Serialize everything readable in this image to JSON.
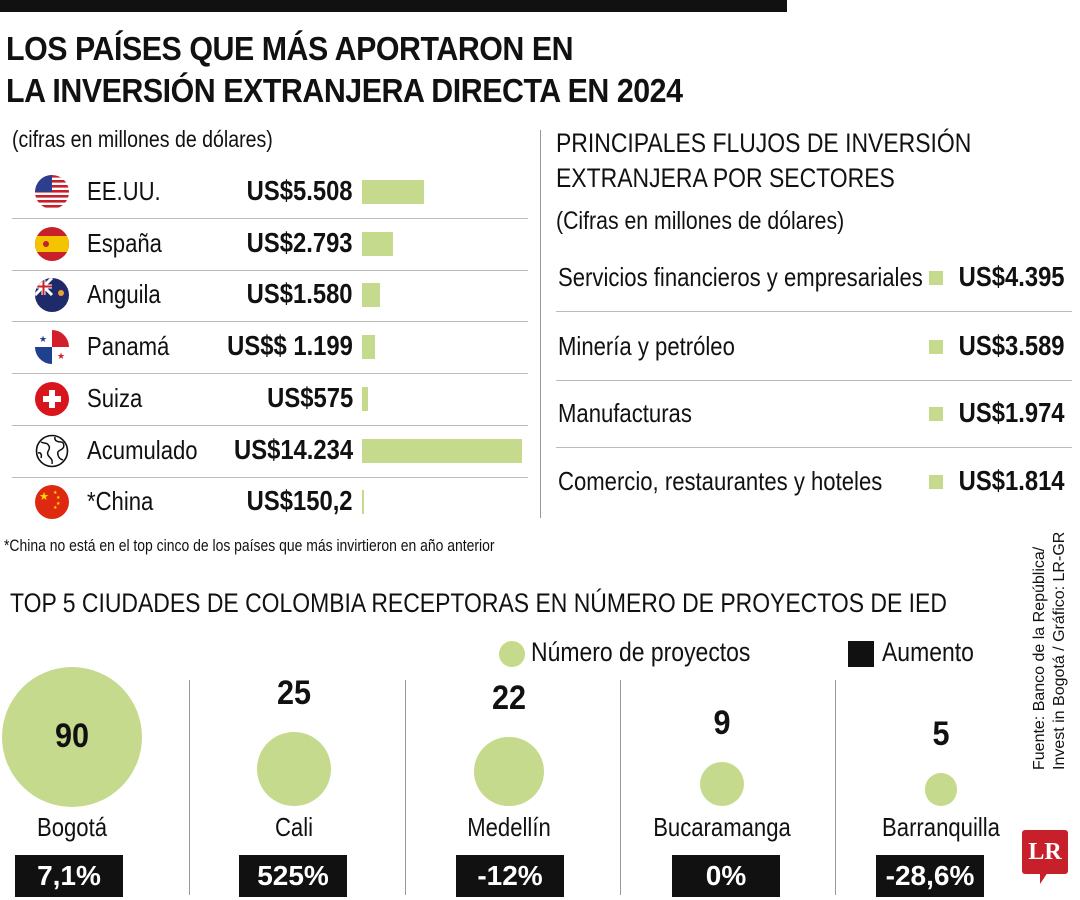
{
  "title_lines": [
    "LOS PAÍSES QUE MÁS APORTARON EN",
    "LA INVERSIÓN EXTRANJERA DIRECTA EN 2024"
  ],
  "countries_subtitle": "(cifras en millones de dólares)",
  "colors": {
    "bar": "#c5da8c",
    "badge": "#111111",
    "logo": "#c8202a"
  },
  "countries": [
    {
      "name": "EE.UU.",
      "label": "US$5.508",
      "value": 5508,
      "icon": "usa-flag-icon"
    },
    {
      "name": "España",
      "label": "US$2.793",
      "value": 2793,
      "icon": "spain-flag-icon"
    },
    {
      "name": "Anguila",
      "label": "US$1.580",
      "value": 1580,
      "icon": "anguilla-flag-icon"
    },
    {
      "name": "Panamá",
      "label": "US$$ 1.199",
      "value": 1199,
      "icon": "panama-flag-icon"
    },
    {
      "name": "Suiza",
      "label": "US$575",
      "value": 575,
      "icon": "switzerland-flag-icon"
    },
    {
      "name": "Acumulado",
      "label": "US$14.234",
      "value": 14234,
      "icon": "globe-icon"
    },
    {
      "name": "*China",
      "label": "US$150,2",
      "value": 150.2,
      "icon": "china-flag-icon"
    }
  ],
  "footnote": "*China no está en el top cinco de los países que más invirtieron en año anterior",
  "sectors_title_lines": [
    "PRINCIPALES FLUJOS DE INVERSIÓN",
    "EXTRANJERA POR SECTORES"
  ],
  "sectors_subtitle": "(Cifras en millones de dólares)",
  "sectors": [
    {
      "name": "Servicios financieros y empresariales",
      "label": "US$4.395"
    },
    {
      "name": "Minería y petróleo",
      "label": "US$3.589"
    },
    {
      "name": "Manufacturas",
      "label": "US$1.974"
    },
    {
      "name": "Comercio, restaurantes y hoteles",
      "label": "US$1.814"
    }
  ],
  "cities_title": "TOP 5 CIUDADES DE COLOMBIA RECEPTORAS EN NÚMERO DE PROYECTOS DE IED",
  "legend": {
    "projects": "Número de proyectos",
    "increase": "Aumento"
  },
  "source_lines": [
    "Fuente: Banco de la República/",
    "Invest in Bogotá / Gráfico: LR-GR"
  ],
  "logo": "LR",
  "chart_data": [
    {
      "type": "bar",
      "orientation": "horizontal",
      "categories": [
        "EE.UU.",
        "España",
        "Anguila",
        "Panamá",
        "Suiza",
        "Acumulado",
        "*China"
      ],
      "values": [
        5508,
        2793,
        1580,
        1199,
        575,
        14234,
        150.2
      ],
      "unit": "millones de dólares"
    },
    {
      "type": "bubble",
      "categories": [
        "Bogotá",
        "Cali",
        "Medellín",
        "Bucaramanga",
        "Barranquilla"
      ],
      "series": [
        {
          "name": "Número de proyectos",
          "values": [
            90,
            25,
            22,
            9,
            5
          ]
        },
        {
          "name": "Aumento",
          "values": [
            "7,1%",
            "525%",
            "-12%",
            "0%",
            "-28,6%"
          ]
        }
      ]
    }
  ]
}
